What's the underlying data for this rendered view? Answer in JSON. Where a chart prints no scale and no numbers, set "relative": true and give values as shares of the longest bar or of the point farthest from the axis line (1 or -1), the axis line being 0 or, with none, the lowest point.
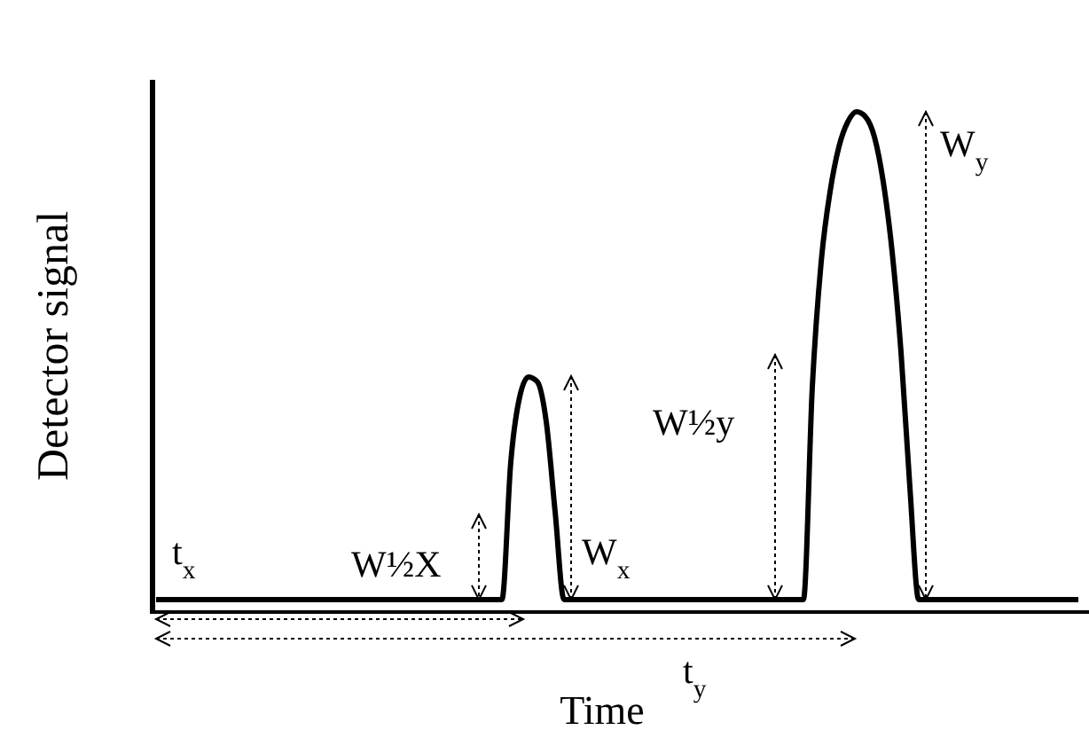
{
  "chart_data": {
    "type": "line",
    "relative": true,
    "xlabel": "Time",
    "ylabel": "Detector signal",
    "color": "#000000",
    "marker": "none",
    "line_style": "solid",
    "categories": [
      null,
      null,
      null,
      null,
      null,
      null,
      null,
      null,
      null,
      null,
      null,
      null,
      null,
      null,
      null,
      null,
      null,
      null,
      null,
      null,
      null,
      null,
      null,
      null,
      null,
      null,
      null,
      null,
      null,
      null,
      null,
      null,
      null,
      null,
      null,
      null,
      null,
      null,
      null,
      null,
      null,
      null,
      null,
      null,
      null,
      null,
      null,
      null,
      null,
      null,
      null,
      null,
      null,
      null,
      null,
      null,
      null,
      null,
      null,
      null,
      null,
      null,
      null,
      null,
      null,
      null,
      null,
      null,
      null,
      null,
      null,
      null,
      null,
      null,
      null,
      null,
      null,
      null,
      null,
      null,
      null,
      null,
      null,
      null,
      null,
      null,
      null,
      null,
      null,
      null,
      null,
      null,
      null,
      null,
      null,
      null,
      null,
      null,
      null,
      null,
      null,
      null,
      null,
      null,
      null
    ],
    "values": [
      0.025,
      0.025,
      0.025,
      0.025,
      0.025,
      0.025,
      0.025,
      0.025,
      0.025,
      0.025,
      0.025,
      0.025,
      0.025,
      0.025,
      0.025,
      0.025,
      0.025,
      0.025,
      0.025,
      0.025,
      0.025,
      0.025,
      0.025,
      0.025,
      0.025,
      0.025,
      0.025,
      0.025,
      0.025,
      0.025,
      0.025,
      0.025,
      0.025,
      0.025,
      0.025,
      0.025,
      0.025,
      0.025,
      0.025,
      0.025,
      0.3,
      0.43,
      0.47,
      0.46,
      0.38,
      0.2,
      0.025,
      0.025,
      0.025,
      0.025,
      0.025,
      0.025,
      0.025,
      0.025,
      0.025,
      0.025,
      0.025,
      0.025,
      0.025,
      0.025,
      0.025,
      0.025,
      0.025,
      0.025,
      0.025,
      0.025,
      0.025,
      0.025,
      0.025,
      0.025,
      0.025,
      0.025,
      0.025,
      0.025,
      0.45,
      0.7,
      0.84,
      0.93,
      0.98,
      1,
      0.99,
      0.95,
      0.86,
      0.72,
      0.52,
      0.25,
      0.025,
      0.025,
      0.025,
      0.025,
      0.025,
      0.025,
      0.025,
      0.025,
      0.025,
      0.025,
      0.025,
      0.025,
      0.025,
      0.025,
      0.025,
      0.025,
      0.025,
      0.025,
      0.025
    ],
    "annotations": [
      "t$_{x}$",
      "W½X",
      "W$_{x}$",
      "W½y",
      "W$_{y}$",
      "t$_{y}$"
    ]
  }
}
